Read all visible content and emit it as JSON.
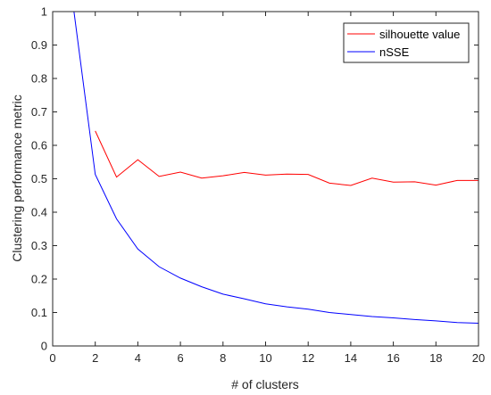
{
  "chart_data": {
    "type": "line",
    "xlabel": "# of clusters",
    "ylabel": "Clustering performance metric",
    "xlim": [
      0,
      20
    ],
    "ylim": [
      0,
      1
    ],
    "xticks": [
      0,
      2,
      4,
      6,
      8,
      10,
      12,
      14,
      16,
      18,
      20
    ],
    "yticks": [
      0,
      0.1,
      0.2,
      0.3,
      0.4,
      0.5,
      0.6,
      0.7,
      0.8,
      0.9,
      1
    ],
    "grid": false,
    "legend_position": "top-right",
    "series": [
      {
        "name": "silhouette value",
        "color": "#ff0000",
        "x": [
          2,
          3,
          4,
          5,
          6,
          7,
          8,
          9,
          10,
          11,
          12,
          13,
          14,
          15,
          16,
          17,
          18,
          19,
          20
        ],
        "values": [
          0.643,
          0.505,
          0.557,
          0.507,
          0.52,
          0.502,
          0.509,
          0.519,
          0.511,
          0.514,
          0.513,
          0.487,
          0.48,
          0.502,
          0.49,
          0.491,
          0.481,
          0.495,
          0.495
        ]
      },
      {
        "name": "nSSE",
        "color": "#0000ff",
        "x": [
          1,
          2,
          3,
          4,
          5,
          6,
          7,
          8,
          9,
          10,
          11,
          12,
          13,
          14,
          15,
          16,
          17,
          18,
          19,
          20
        ],
        "values": [
          1.0,
          0.513,
          0.38,
          0.29,
          0.237,
          0.203,
          0.177,
          0.155,
          0.141,
          0.126,
          0.117,
          0.11,
          0.1,
          0.094,
          0.088,
          0.084,
          0.079,
          0.075,
          0.07,
          0.068
        ]
      }
    ]
  }
}
